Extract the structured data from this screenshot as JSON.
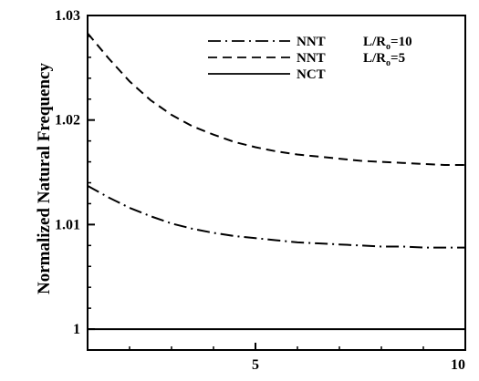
{
  "chart_data": {
    "type": "line",
    "title": "",
    "xlabel": "",
    "ylabel": "Normalized Natural Frequency",
    "xlim": [
      1,
      10
    ],
    "ylim": [
      0.998,
      1.03
    ],
    "x_ticks": [
      {
        "value": 5,
        "label": "5"
      },
      {
        "value": 10,
        "label": "10"
      }
    ],
    "y_ticks": [
      {
        "value": 1,
        "label": "1"
      },
      {
        "value": 1.01,
        "label": "1.01"
      },
      {
        "value": 1.02,
        "label": "1.02"
      },
      {
        "value": 1.03,
        "label": "1.03"
      }
    ],
    "x_minor_ticks": [
      2,
      3,
      4,
      5,
      6,
      7,
      8,
      9
    ],
    "y_minor_ticks": [
      1.002,
      1.004,
      1.006,
      1.008,
      1.012,
      1.014,
      1.016,
      1.018,
      1.022,
      1.024,
      1.026,
      1.028
    ],
    "grid": false,
    "legend_position": "top-right",
    "series": [
      {
        "name": "NNT",
        "param": "L/R_o=10",
        "style": "dash-dot",
        "x": [
          1.0,
          1.5,
          2.0,
          2.5,
          3.0,
          3.5,
          4.0,
          4.5,
          5.0,
          5.5,
          6.0,
          6.5,
          7.0,
          7.5,
          8.0,
          8.5,
          9.0,
          9.5,
          10.0
        ],
        "y": [
          1.0137,
          1.0126,
          1.0116,
          1.0108,
          1.0101,
          1.0096,
          1.0092,
          1.0089,
          1.0087,
          1.0085,
          1.0083,
          1.0082,
          1.0081,
          1.008,
          1.0079,
          1.0079,
          1.0078,
          1.0078,
          1.0078
        ]
      },
      {
        "name": "NNT",
        "param": "L/R_o=5",
        "style": "dashed",
        "x": [
          1.0,
          1.5,
          2.0,
          2.5,
          3.0,
          3.5,
          4.0,
          4.5,
          5.0,
          5.5,
          6.0,
          6.5,
          7.0,
          7.5,
          8.0,
          8.5,
          9.0,
          9.5,
          10.0
        ],
        "y": [
          1.0283,
          1.0259,
          1.0237,
          1.0219,
          1.0205,
          1.0194,
          1.0186,
          1.0179,
          1.0174,
          1.017,
          1.0167,
          1.0165,
          1.0163,
          1.0161,
          1.016,
          1.0159,
          1.0158,
          1.0157,
          1.0157
        ]
      },
      {
        "name": "NCT",
        "param": "",
        "style": "solid",
        "x": [
          1.0,
          10.0
        ],
        "y": [
          1.0,
          1.0
        ]
      }
    ]
  }
}
